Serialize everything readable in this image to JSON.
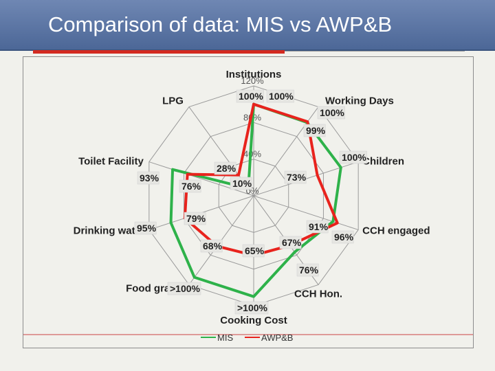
{
  "page": {
    "title": "Comparison of data: MIS vs AWP&B",
    "accent_red": "#d32a20",
    "title_bar_color": "#5a74a3"
  },
  "chart_data": {
    "type": "radar",
    "categories": [
      "Institutions",
      "Working Days",
      "Children",
      "CCH engaged",
      "CCH Hon.",
      "Cooking Cost",
      "Food grains",
      "Drinking water",
      "Toilet Facility",
      "LPG"
    ],
    "ticks": [
      {
        "value": 0,
        "label": "0%"
      },
      {
        "value": 40,
        "label": "40%"
      },
      {
        "value": 80,
        "label": "80%"
      },
      {
        "value": 120,
        "label": "120%"
      }
    ],
    "rlim": [
      0,
      120
    ],
    "series": [
      {
        "name": "MIS",
        "color": "#2eb24a",
        "values": [
          100,
          99,
          100,
          91,
          76,
          110,
          110,
          95,
          93,
          10
        ]
      },
      {
        "name": "AWP&B",
        "color": "#e8231d",
        "values": [
          100,
          100,
          73,
          96,
          67,
          65,
          68,
          79,
          76,
          28
        ]
      }
    ],
    "data_labels": [
      "100%",
      "100%",
      "100%",
      "99%",
      "100%",
      "73%",
      "91%",
      "96%",
      "76%",
      "67%",
      ">100%",
      "65%",
      ">100%",
      "68%",
      "95%",
      "79%",
      "93%",
      "76%",
      "28%",
      "10%"
    ],
    "legend": [
      "MIS",
      "AWP&B"
    ],
    "legend_position": "bottom"
  }
}
